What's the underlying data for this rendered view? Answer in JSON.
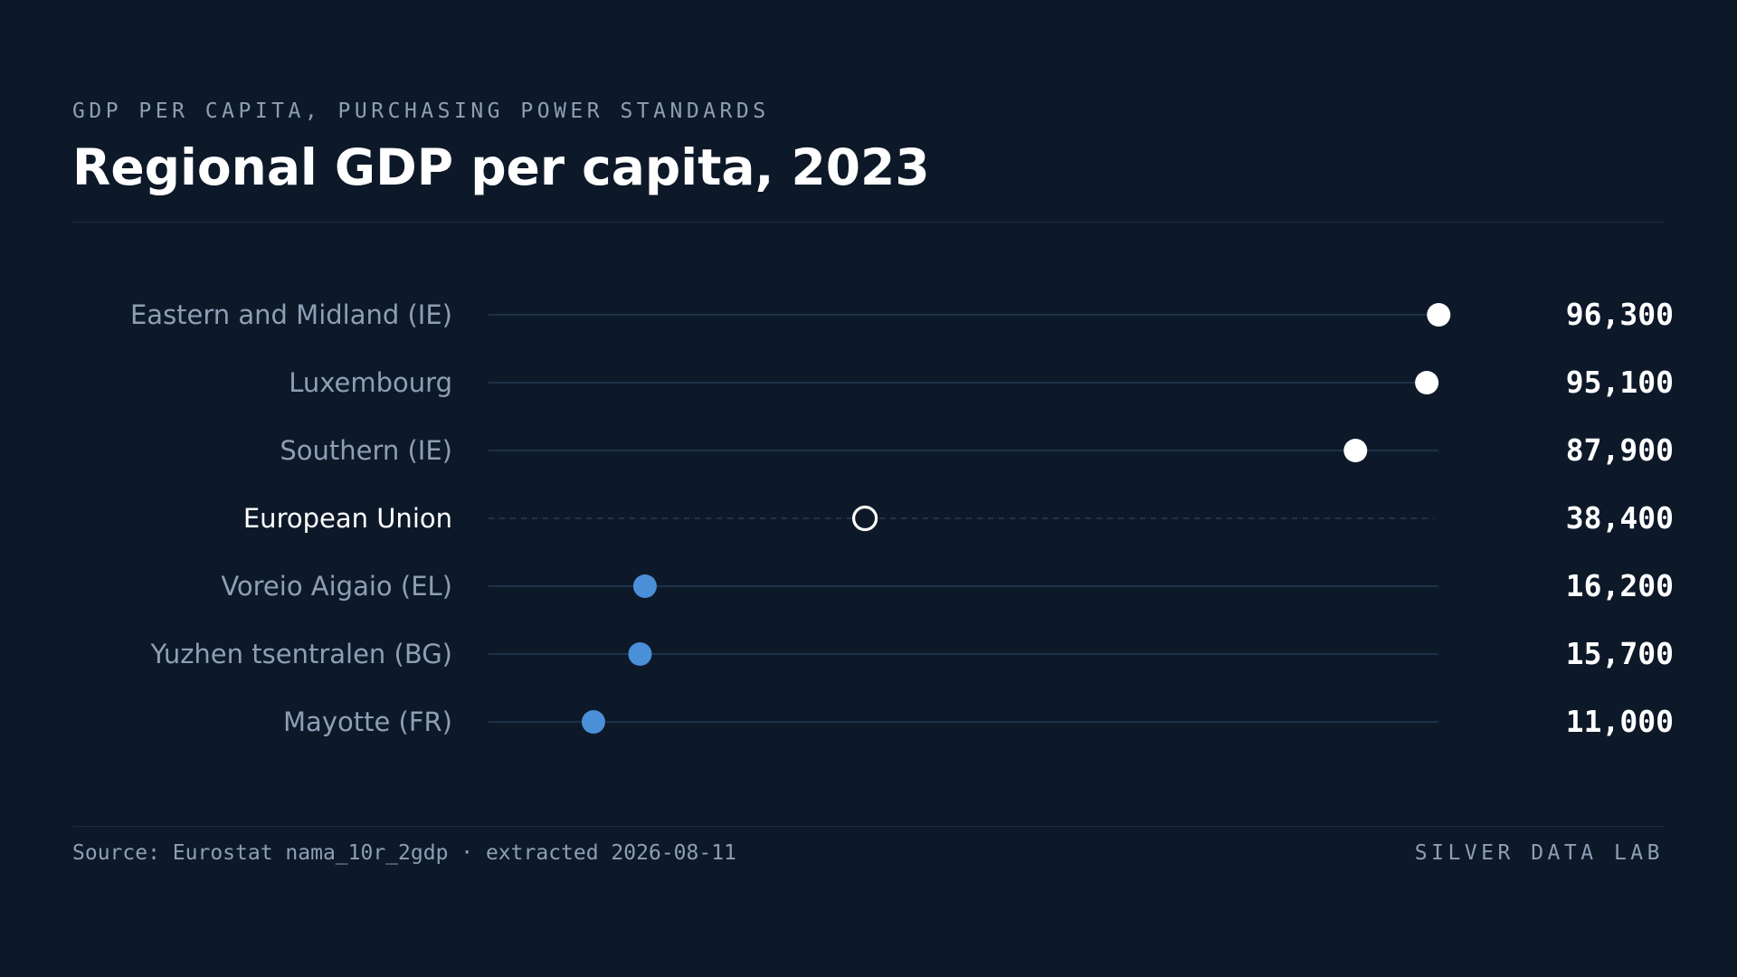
{
  "header": {
    "eyebrow": "GDP PER CAPITA, PURCHASING POWER STANDARDS",
    "title": "Regional GDP per capita, 2023"
  },
  "footer": {
    "source": "Source: Eurostat nama_10r_2gdp · extracted 2026-08-11",
    "brand": "SILVER DATA LAB"
  },
  "colors": {
    "background": "#0d1929",
    "high": "#ffffff",
    "low": "#4a8fd8",
    "reference": "#ffffff",
    "track": "#1e3148",
    "label": "#8e9fb5",
    "label_reference": "#ffffff",
    "value": "#ffffff"
  },
  "chart_data": {
    "type": "dot",
    "xlim": [
      0,
      107000
    ],
    "grid": false,
    "categories": [
      "Eastern and Midland (IE)",
      "Luxembourg",
      "Southern (IE)",
      "European Union",
      "Voreio Aigaio (EL)",
      "Yuzhen tsentralen (BG)",
      "Mayotte (FR)"
    ],
    "values": [
      96300,
      95100,
      87900,
      38400,
      16200,
      15700,
      11000
    ],
    "value_labels": [
      "96,300",
      "95,100",
      "87,900",
      "38,400",
      "16,200",
      "15,700",
      "11,000"
    ],
    "groups": [
      "high",
      "high",
      "high",
      "reference",
      "low",
      "low",
      "low"
    ]
  }
}
